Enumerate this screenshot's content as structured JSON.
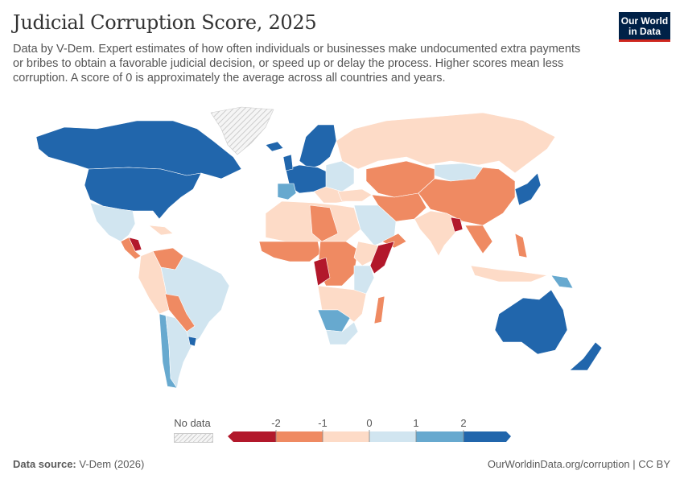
{
  "header": {
    "title": "Judicial Corruption Score, 2025",
    "subtitle": "Data by V-Dem. Expert estimates of how often individuals or businesses make undocumented extra payments or bribes to obtain a favorable judicial decision, or speed up or delay the process. Higher scores mean less corruption. A score of 0 is approximately the average across all countries and years.",
    "logo": "Our World in Data"
  },
  "legend": {
    "no_data_label": "No data",
    "ticks": [
      "-2",
      "-1",
      "0",
      "1",
      "2"
    ],
    "bins": [
      {
        "range": "< -2",
        "color": "#b2182b"
      },
      {
        "range": "-2 to -1",
        "color": "#ef8a62"
      },
      {
        "range": "-1 to 0",
        "color": "#fddbc7"
      },
      {
        "range": "0 to 1",
        "color": "#d1e5f0"
      },
      {
        "range": "1 to 2",
        "color": "#67a9cf"
      },
      {
        "range": "> 2",
        "color": "#2166ac"
      }
    ]
  },
  "footer": {
    "source_label": "Data source:",
    "source": "V-Dem (2026)",
    "link": "OurWorldinData.org/corruption | CC BY"
  }
}
